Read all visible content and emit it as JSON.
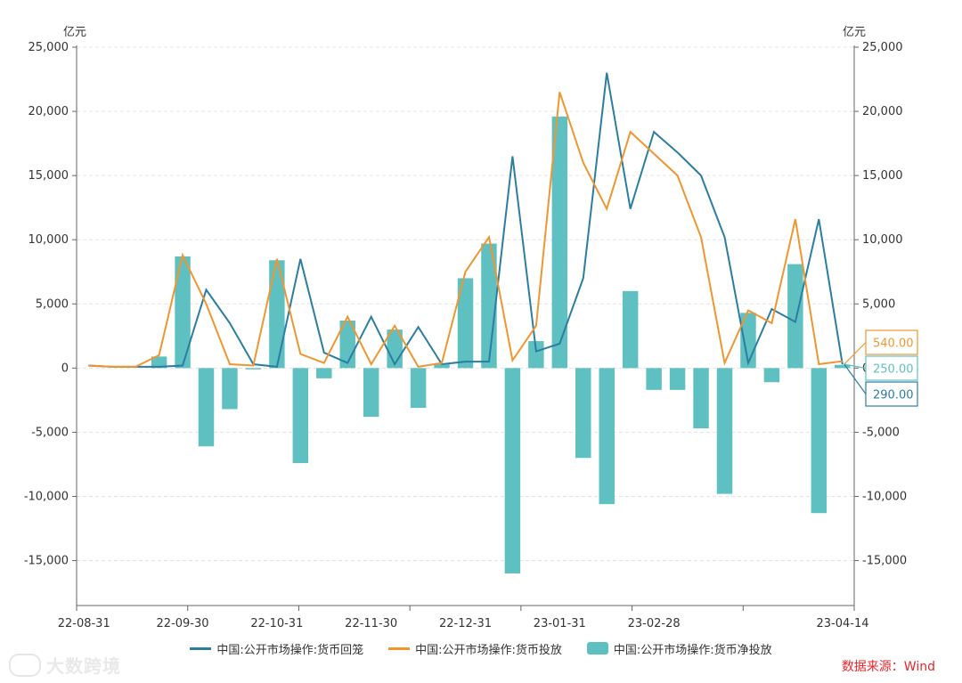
{
  "colors": {
    "recovery": "#2b7ea1",
    "injection": "#ef9631",
    "net": "#5fc0c2",
    "source": "#e8262a",
    "grid": "#e4e4e4",
    "axis": "#666666"
  },
  "chart_data": {
    "type": "bar+line",
    "left_unit": "亿元",
    "right_unit": "亿元",
    "ylim": [
      -18500,
      25000
    ],
    "y_ticks": [
      -15000,
      -10000,
      -5000,
      0,
      5000,
      10000,
      15000,
      20000,
      25000
    ],
    "y_tick_labels": [
      "-15,000",
      "-10,000",
      "-5,000",
      "0",
      "5,000",
      "10,000",
      "15,000",
      "20,000",
      "25,000"
    ],
    "x_tick_labels": [
      "22-08-31",
      "22-09-30",
      "22-10-31",
      "22-11-30",
      "22-12-31",
      "23-01-31",
      "23-02-28",
      "23-04-14"
    ],
    "periods": 33,
    "series": [
      {
        "name": "中国:公开市场操作:货币回笼",
        "kind": "line",
        "values": [
          200,
          100,
          100,
          100,
          200,
          6100,
          3500,
          300,
          100,
          8500,
          1200,
          400,
          4000,
          300,
          3200,
          300,
          500,
          500,
          16500,
          1300,
          1900,
          7000,
          23000,
          12400,
          18400,
          16800,
          15000,
          10200,
          400,
          4600,
          3600,
          11600,
          290
        ]
      },
      {
        "name": "中国:公开市场操作:货币投放",
        "kind": "line",
        "values": [
          200,
          100,
          100,
          1000,
          8800,
          5000,
          300,
          200,
          8500,
          1100,
          400,
          4000,
          300,
          3300,
          100,
          400,
          7500,
          10200,
          600,
          3300,
          21500,
          16000,
          12400,
          18400,
          16700,
          15000,
          10200,
          400,
          4500,
          3500,
          11600,
          300,
          540
        ]
      },
      {
        "name": "中国:公开市场操作:货币净投放",
        "kind": "bar",
        "values": [
          null,
          null,
          null,
          900,
          8700,
          -6100,
          -3200,
          -100,
          8400,
          -7400,
          -800,
          3700,
          -3800,
          3000,
          -3100,
          300,
          7000,
          9700,
          -16000,
          2100,
          19600,
          -7000,
          -10600,
          6000,
          -1700,
          -1700,
          -4700,
          -9800,
          4300,
          -1100,
          8100,
          -11300,
          250
        ]
      }
    ],
    "end_labels": {
      "injection": "540.00",
      "net": "250.00",
      "recovery": "290.00"
    }
  },
  "legend": {
    "recovery": "中国:公开市场操作:货币回笼",
    "injection": "中国:公开市场操作:货币投放",
    "net": "中国:公开市场操作:货币净投放"
  },
  "source": "数据来源：Wind",
  "watermark": "大数跨境"
}
